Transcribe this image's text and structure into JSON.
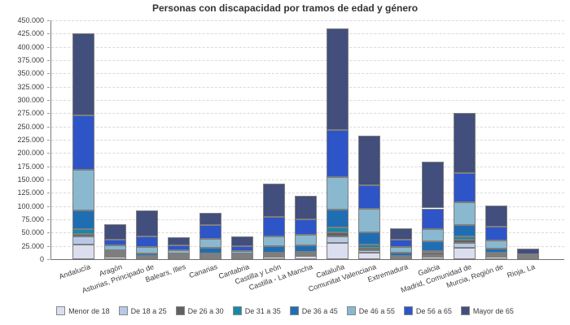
{
  "title": "Personas con discapacidad por tramos de edad y género",
  "colors": {
    "axis": "#7a7a7a",
    "grid": "#d9d9d9",
    "text": "#3c3c3c",
    "bar_border": "#7e7e7e",
    "background": "#ffffff"
  },
  "chart_data": {
    "type": "bar",
    "stacked": true,
    "title": "Personas con discapacidad por tramos de edad y género",
    "xlabel": "",
    "ylabel": "",
    "ylim": [
      0,
      450000
    ],
    "ytick_step": 25000,
    "ytick_labels": [
      "0",
      "25.000",
      "50.000",
      "75.000",
      "100.000",
      "125.000",
      "150.000",
      "175.000",
      "200.000",
      "225.000",
      "250.000",
      "275.000",
      "300.000",
      "325.000",
      "350.000",
      "375.000",
      "400.000",
      "425.000",
      "450.000"
    ],
    "grid": "horizontal-dashed",
    "legend_position": "bottom",
    "categories": [
      "Andalucía",
      "Aragón",
      "Asturias, Principado de",
      "Balears, Illes",
      "Canarias",
      "Cantabria",
      "Castilla y León",
      "Castilla - La Mancha",
      "Cataluña",
      "Comunitat Valenciana",
      "Extremadura",
      "Galicia",
      "Madrid, Comunidad de",
      "Murcia, Región de",
      "Rioja, La"
    ],
    "series": [
      {
        "name": "Menor de 18",
        "color": "#dadeef",
        "values": [
          28000,
          5000,
          2000,
          2200,
          3800,
          2900,
          5300,
          6400,
          31000,
          11900,
          1800,
          5300,
          22100,
          4500,
          700
        ]
      },
      {
        "name": "De 18 a 25",
        "color": "#b7c9e6",
        "values": [
          15000,
          3000,
          1400,
          2100,
          3100,
          2000,
          3100,
          3500,
          12200,
          5200,
          1200,
          3100,
          9100,
          2400,
          400
        ]
      },
      {
        "name": "De 26 a 30",
        "color": "#616161",
        "values": [
          4000,
          3000,
          2000,
          3600,
          2500,
          2000,
          2000,
          2600,
          6800,
          3900,
          2400,
          3500,
          6100,
          2500,
          400
        ]
      },
      {
        "name": "De 31 a 35",
        "color": "#1789a8",
        "values": [
          10000,
          2500,
          1500,
          1000,
          2000,
          1100,
          2500,
          2000,
          9100,
          6100,
          1500,
          3600,
          5100,
          3600,
          400
        ]
      },
      {
        "name": "De 36 a 45",
        "color": "#1f6eb4",
        "values": [
          35000,
          4000,
          4100,
          2100,
          10700,
          3000,
          11700,
          11700,
          34100,
          24000,
          5000,
          18300,
          21200,
          7600,
          1200
        ]
      },
      {
        "name": "De 46 a 55",
        "color": "#89b8cf",
        "values": [
          76000,
          8500,
          12200,
          6100,
          16800,
          4500,
          18800,
          20300,
          61000,
          43200,
          11700,
          22300,
          43300,
          15200,
          2400
        ]
      },
      {
        "name": "De 56 a 65",
        "color": "#2e55c8",
        "values": [
          103000,
          10500,
          19200,
          9100,
          24800,
          8600,
          35500,
          27900,
          89000,
          44800,
          13700,
          39600,
          55800,
          25900,
          3700
        ]
      },
      {
        "name": "Mayor de 65",
        "color": "#424f7d",
        "values": [
          155000,
          29500,
          49300,
          15200,
          23500,
          19300,
          63500,
          45300,
          192000,
          93900,
          20300,
          87500,
          112300,
          39200,
          10100
        ]
      }
    ]
  }
}
